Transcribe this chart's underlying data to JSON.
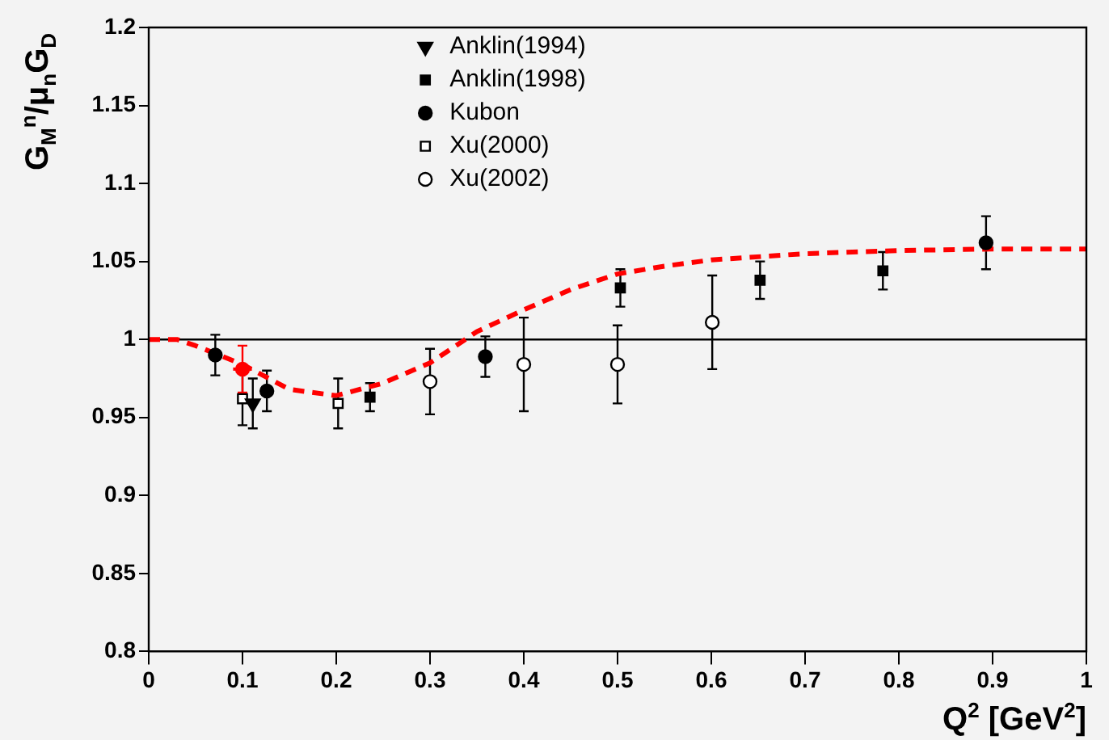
{
  "chart_data": {
    "type": "scatter",
    "xlabel": "Q$^{2}$  [GeV$^{2}$]",
    "ylabel": "G$_{M}$$^{n}$/μ$_{n}$G$_{D}$",
    "xlim": [
      0,
      1
    ],
    "xticks": [
      0,
      0.1,
      0.2,
      0.3,
      0.4,
      0.5,
      0.6,
      0.7,
      0.8,
      0.9,
      1
    ],
    "ylim": [
      0.8,
      1.2
    ],
    "yticks": [
      0.8,
      0.85,
      0.9,
      0.95,
      1,
      1.05,
      1.1,
      1.15,
      1.2
    ],
    "grid": false,
    "legend": "top",
    "ref_lines": [
      {
        "axis": "y",
        "value": 1,
        "color": "#000000"
      }
    ],
    "series": [
      {
        "name": "Anklin(1994)",
        "marker": "triangle",
        "color": "#000000",
        "x": [
          0.111
        ],
        "values": [
          0.959
        ],
        "errors": [
          0.016
        ]
      },
      {
        "name": "Anklin(1998)",
        "marker": "square",
        "color": "#000000",
        "x": [
          0.236,
          0.503,
          0.652,
          0.783
        ],
        "values": [
          0.963,
          1.033,
          1.038,
          1.044
        ],
        "errors": [
          0.009,
          0.012,
          0.012,
          0.012
        ]
      },
      {
        "name": "Kubon",
        "marker": "circle",
        "color": "#000000",
        "x": [
          0.071,
          0.126,
          0.359,
          0.893
        ],
        "values": [
          0.99,
          0.967,
          0.989,
          1.062
        ],
        "errors": [
          0.013,
          0.013,
          0.013,
          0.017
        ]
      },
      {
        "name": "Xu(2000)",
        "marker": "square-open",
        "color": "#000000",
        "x": [
          0.1,
          0.202
        ],
        "values": [
          0.962,
          0.959
        ],
        "errors": [
          0.017,
          0.016
        ]
      },
      {
        "name": "Xu(2002)",
        "marker": "circle-open",
        "color": "#000000",
        "x": [
          0.3,
          0.4,
          0.5,
          0.601
        ],
        "values": [
          0.973,
          0.984,
          0.984,
          1.011
        ],
        "errors": [
          0.021,
          0.03,
          0.025,
          0.03
        ]
      },
      {
        "marker": "circle",
        "color": "#ff0000",
        "x": [
          0.1
        ],
        "values": [
          0.981
        ],
        "errors": [
          0.015
        ],
        "xerrors": [
          0.01
        ]
      },
      {
        "type": "line",
        "marker": "none",
        "line_style": "dashed",
        "color": "#ff0000",
        "x": [
          0,
          0.03,
          0.05,
          0.1,
          0.15,
          0.2,
          0.25,
          0.3,
          0.35,
          0.4,
          0.45,
          0.5,
          0.55,
          0.6,
          0.7,
          0.8,
          0.9,
          1
        ],
        "values": [
          1,
          1,
          0.996,
          0.984,
          0.968,
          0.964,
          0.972,
          0.985,
          1.005,
          1.019,
          1.032,
          1.042,
          1.047,
          1.051,
          1.055,
          1.057,
          1.058,
          1.058
        ]
      }
    ]
  }
}
